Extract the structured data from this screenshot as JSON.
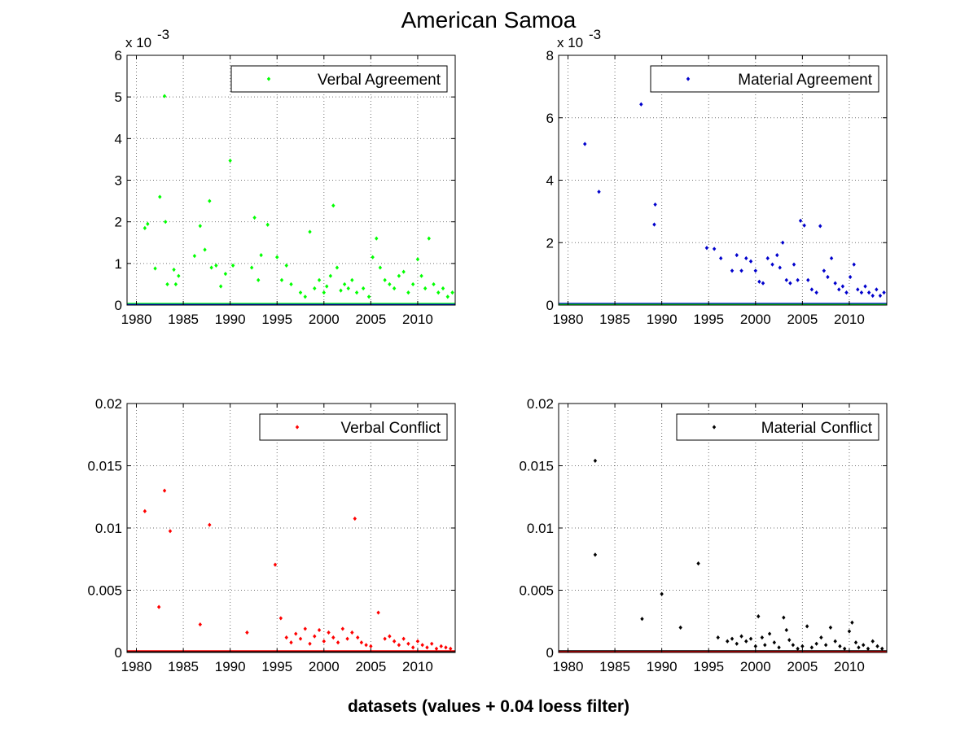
{
  "figure": {
    "title": "American Samoa",
    "xlabel": "datasets (values + 0.04 loess filter)"
  },
  "chart_data": [
    {
      "type": "scatter",
      "legend": "Verbal Agreement",
      "legend_placement": "top-right",
      "grid": true,
      "xlim": [
        1979,
        2014
      ],
      "ylim": [
        0,
        0.006
      ],
      "exponent_label": "x 10",
      "exponent_power": "-3",
      "x_ticks": [
        1980,
        1985,
        1990,
        1995,
        2000,
        2005,
        2010
      ],
      "x_tick_labels": [
        "1980",
        "1985",
        "1990",
        "1995",
        "2000",
        "2005",
        "2010"
      ],
      "y_ticks": [
        0,
        0.001,
        0.002,
        0.003,
        0.004,
        0.005,
        0.006
      ],
      "y_tick_labels": [
        "0",
        "1",
        "2",
        "3",
        "4",
        "5",
        "6"
      ],
      "series_color": "#00ff00",
      "baseline_color": "#0000ff",
      "points": [
        [
          1980.9,
          0.00185
        ],
        [
          1981.2,
          0.00195
        ],
        [
          1982.0,
          0.00088
        ],
        [
          1982.5,
          0.0026
        ],
        [
          1983.0,
          0.00502
        ],
        [
          1983.1,
          0.002
        ],
        [
          1983.3,
          0.0005
        ],
        [
          1984.0,
          0.00085
        ],
        [
          1984.2,
          0.0005
        ],
        [
          1984.5,
          0.0007
        ],
        [
          1986.2,
          0.00118
        ],
        [
          1986.8,
          0.0019
        ],
        [
          1987.3,
          0.00133
        ],
        [
          1987.8,
          0.0025
        ],
        [
          1988.0,
          0.0009
        ],
        [
          1988.5,
          0.00095
        ],
        [
          1989.0,
          0.00045
        ],
        [
          1989.5,
          0.00075
        ],
        [
          1990.0,
          0.00347
        ],
        [
          1990.3,
          0.00095
        ],
        [
          1992.3,
          0.0009
        ],
        [
          1992.6,
          0.0021
        ],
        [
          1993.0,
          0.0006
        ],
        [
          1993.3,
          0.0012
        ],
        [
          1994.0,
          0.00193
        ],
        [
          1995.0,
          0.00115
        ],
        [
          1995.5,
          0.0006
        ],
        [
          1996.0,
          0.00095
        ],
        [
          1996.5,
          0.0005
        ],
        [
          1997.5,
          0.0003
        ],
        [
          1998.0,
          0.0002
        ],
        [
          1998.5,
          0.00176
        ],
        [
          1999.0,
          0.0004
        ],
        [
          1999.5,
          0.0006
        ],
        [
          2000.0,
          0.0003
        ],
        [
          2000.3,
          0.00045
        ],
        [
          2000.7,
          0.0007
        ],
        [
          2001.0,
          0.00239
        ],
        [
          2001.4,
          0.0009
        ],
        [
          2001.8,
          0.00035
        ],
        [
          2002.2,
          0.0005
        ],
        [
          2002.6,
          0.0004
        ],
        [
          2003.0,
          0.0006
        ],
        [
          2003.5,
          0.0003
        ],
        [
          2004.2,
          0.0004
        ],
        [
          2004.8,
          0.0002
        ],
        [
          2005.2,
          0.00115
        ],
        [
          2005.6,
          0.0016
        ],
        [
          2006.0,
          0.0009
        ],
        [
          2006.5,
          0.0006
        ],
        [
          2007.0,
          0.0005
        ],
        [
          2007.5,
          0.0004
        ],
        [
          2008.0,
          0.0007
        ],
        [
          2008.5,
          0.0008
        ],
        [
          2009.0,
          0.0003
        ],
        [
          2009.5,
          0.0005
        ],
        [
          2010.0,
          0.0011
        ],
        [
          2010.4,
          0.0007
        ],
        [
          2010.8,
          0.0004
        ],
        [
          2011.2,
          0.0016
        ],
        [
          2011.7,
          0.0005
        ],
        [
          2012.2,
          0.0003
        ],
        [
          2012.7,
          0.0004
        ],
        [
          2013.2,
          0.0002
        ],
        [
          2013.7,
          0.0003
        ]
      ]
    },
    {
      "type": "scatter",
      "legend": "Material Agreement",
      "legend_placement": "top-right",
      "grid": true,
      "xlim": [
        1979,
        2014
      ],
      "ylim": [
        0,
        0.008
      ],
      "exponent_label": "x 10",
      "exponent_power": "-3",
      "x_ticks": [
        1980,
        1985,
        1990,
        1995,
        2000,
        2005,
        2010
      ],
      "x_tick_labels": [
        "1980",
        "1985",
        "1990",
        "1995",
        "2000",
        "2005",
        "2010"
      ],
      "y_ticks": [
        0,
        0.002,
        0.004,
        0.006,
        0.008
      ],
      "y_tick_labels": [
        "0",
        "2",
        "4",
        "6",
        "8"
      ],
      "series_color": "#0000cc",
      "baseline_color": "#00ff00",
      "points": [
        [
          1981.8,
          0.00516
        ],
        [
          1983.3,
          0.00363
        ],
        [
          1987.8,
          0.00643
        ],
        [
          1989.3,
          0.00322
        ],
        [
          1989.2,
          0.00258
        ],
        [
          1994.8,
          0.00183
        ],
        [
          1995.6,
          0.0018
        ],
        [
          1996.3,
          0.0015
        ],
        [
          1997.5,
          0.0011
        ],
        [
          1998.0,
          0.0016
        ],
        [
          1998.5,
          0.0011
        ],
        [
          1999.0,
          0.0015
        ],
        [
          1999.5,
          0.0014
        ],
        [
          2000.0,
          0.0011
        ],
        [
          2000.4,
          0.00075
        ],
        [
          2000.8,
          0.0007
        ],
        [
          2001.3,
          0.0015
        ],
        [
          2001.8,
          0.0013
        ],
        [
          2002.3,
          0.0016
        ],
        [
          2002.6,
          0.0012
        ],
        [
          2002.9,
          0.002
        ],
        [
          2003.3,
          0.0008
        ],
        [
          2003.7,
          0.0007
        ],
        [
          2004.1,
          0.0013
        ],
        [
          2004.5,
          0.0008
        ],
        [
          2004.8,
          0.0027
        ],
        [
          2005.2,
          0.00255
        ],
        [
          2005.6,
          0.0008
        ],
        [
          2006.0,
          0.0005
        ],
        [
          2006.5,
          0.0004
        ],
        [
          2006.9,
          0.00253
        ],
        [
          2007.3,
          0.0011
        ],
        [
          2007.7,
          0.0009
        ],
        [
          2008.1,
          0.0015
        ],
        [
          2008.5,
          0.0007
        ],
        [
          2008.9,
          0.0005
        ],
        [
          2009.3,
          0.0006
        ],
        [
          2009.7,
          0.0004
        ],
        [
          2010.1,
          0.0009
        ],
        [
          2010.5,
          0.0013
        ],
        [
          2010.9,
          0.0005
        ],
        [
          2011.3,
          0.0004
        ],
        [
          2011.7,
          0.0006
        ],
        [
          2012.1,
          0.0004
        ],
        [
          2012.5,
          0.0003
        ],
        [
          2012.9,
          0.0005
        ],
        [
          2013.3,
          0.0003
        ],
        [
          2013.7,
          0.0004
        ]
      ]
    },
    {
      "type": "scatter",
      "legend": "Verbal Conflict",
      "legend_placement": "top-right",
      "grid": true,
      "xlim": [
        1979,
        2014
      ],
      "ylim": [
        0,
        0.02
      ],
      "x_ticks": [
        1980,
        1985,
        1990,
        1995,
        2000,
        2005,
        2010
      ],
      "x_tick_labels": [
        "1980",
        "1985",
        "1990",
        "1995",
        "2000",
        "2005",
        "2010"
      ],
      "y_ticks": [
        0,
        0.005,
        0.01,
        0.015,
        0.02
      ],
      "y_tick_labels": [
        "0",
        "0.005",
        "0.01",
        "0.015",
        "0.02"
      ],
      "series_color": "#ff0000",
      "baseline_color": "#000000",
      "points": [
        [
          1980.9,
          0.01135
        ],
        [
          1982.4,
          0.00365
        ],
        [
          1983.0,
          0.013
        ],
        [
          1983.6,
          0.00975
        ],
        [
          1986.8,
          0.00225
        ],
        [
          1987.8,
          0.01025
        ],
        [
          1991.8,
          0.0016
        ],
        [
          1994.8,
          0.00705
        ],
        [
          1995.4,
          0.00275
        ],
        [
          1996.0,
          0.0012
        ],
        [
          1996.5,
          0.0008
        ],
        [
          1997.0,
          0.0015
        ],
        [
          1997.5,
          0.0011
        ],
        [
          1998.0,
          0.0019
        ],
        [
          1998.5,
          0.0007
        ],
        [
          1999.0,
          0.0013
        ],
        [
          1999.5,
          0.0018
        ],
        [
          2000.0,
          0.0009
        ],
        [
          2000.5,
          0.0016
        ],
        [
          2001.0,
          0.0012
        ],
        [
          2001.5,
          0.0008
        ],
        [
          2002.0,
          0.0019
        ],
        [
          2002.5,
          0.0011
        ],
        [
          2003.0,
          0.0016
        ],
        [
          2003.3,
          0.01075
        ],
        [
          2003.6,
          0.0012
        ],
        [
          2004.0,
          0.0008
        ],
        [
          2004.5,
          0.0006
        ],
        [
          2005.0,
          0.0005
        ],
        [
          2005.8,
          0.0032
        ],
        [
          2006.5,
          0.0011
        ],
        [
          2007.0,
          0.0013
        ],
        [
          2007.5,
          0.0009
        ],
        [
          2008.0,
          0.0006
        ],
        [
          2008.5,
          0.0011
        ],
        [
          2009.0,
          0.0007
        ],
        [
          2009.5,
          0.0004
        ],
        [
          2010.0,
          0.0009
        ],
        [
          2010.5,
          0.0006
        ],
        [
          2011.0,
          0.0004
        ],
        [
          2011.5,
          0.0007
        ],
        [
          2012.0,
          0.0003
        ],
        [
          2012.5,
          0.0005
        ],
        [
          2013.0,
          0.0004
        ],
        [
          2013.5,
          0.0003
        ]
      ]
    },
    {
      "type": "scatter",
      "legend": "Material Conflict",
      "legend_placement": "top-right",
      "grid": true,
      "xlim": [
        1979,
        2014
      ],
      "ylim": [
        0,
        0.02
      ],
      "x_ticks": [
        1980,
        1985,
        1990,
        1995,
        2000,
        2005,
        2010
      ],
      "x_tick_labels": [
        "1980",
        "1985",
        "1990",
        "1995",
        "2000",
        "2005",
        "2010"
      ],
      "y_ticks": [
        0,
        0.005,
        0.01,
        0.015,
        0.02
      ],
      "y_tick_labels": [
        "0",
        "0.005",
        "0.01",
        "0.015",
        "0.02"
      ],
      "series_color": "#000000",
      "baseline_color": "#ff0000",
      "points": [
        [
          1982.9,
          0.0154
        ],
        [
          1982.9,
          0.00785
        ],
        [
          1987.9,
          0.0027
        ],
        [
          1990.0,
          0.0047
        ],
        [
          1992.0,
          0.002
        ],
        [
          1993.9,
          0.00715
        ],
        [
          1996.0,
          0.0012
        ],
        [
          1997.0,
          0.0009
        ],
        [
          1997.5,
          0.0011
        ],
        [
          1998.0,
          0.0007
        ],
        [
          1998.5,
          0.0013
        ],
        [
          1999.0,
          0.0009
        ],
        [
          1999.5,
          0.0011
        ],
        [
          2000.0,
          0.0005
        ],
        [
          2000.3,
          0.0029
        ],
        [
          2000.7,
          0.0012
        ],
        [
          2001.0,
          0.0006
        ],
        [
          2001.5,
          0.0015
        ],
        [
          2002.0,
          0.0008
        ],
        [
          2002.5,
          0.0004
        ],
        [
          2003.0,
          0.0028
        ],
        [
          2003.3,
          0.0018
        ],
        [
          2003.6,
          0.001
        ],
        [
          2004.0,
          0.0006
        ],
        [
          2004.5,
          0.0003
        ],
        [
          2005.0,
          0.0005
        ],
        [
          2005.5,
          0.0021
        ],
        [
          2006.0,
          0.0004
        ],
        [
          2006.5,
          0.0007
        ],
        [
          2007.0,
          0.0012
        ],
        [
          2007.5,
          0.0006
        ],
        [
          2008.0,
          0.002
        ],
        [
          2008.5,
          0.0009
        ],
        [
          2009.0,
          0.0005
        ],
        [
          2009.5,
          0.0003
        ],
        [
          2010.0,
          0.0017
        ],
        [
          2010.3,
          0.0024
        ],
        [
          2010.7,
          0.0008
        ],
        [
          2011.0,
          0.0004
        ],
        [
          2011.5,
          0.0006
        ],
        [
          2012.0,
          0.0003
        ],
        [
          2012.5,
          0.0009
        ],
        [
          2013.0,
          0.0005
        ],
        [
          2013.5,
          0.0003
        ]
      ]
    }
  ]
}
